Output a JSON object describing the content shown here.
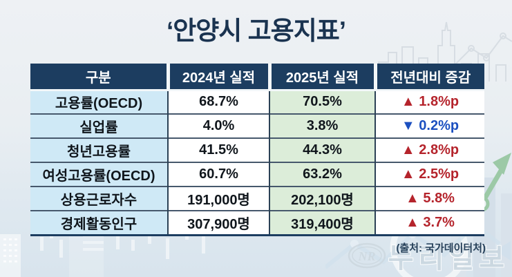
{
  "title": "‘안양시 고용지표’",
  "source_note": "(출처: 국가데이터처)",
  "watermark": {
    "logo_text": "NR",
    "name": "누리일보"
  },
  "colors": {
    "title_navy": "#1a3350",
    "header_bg": "#1c3d60",
    "category_bg": "#cfe9f6",
    "value_2025_bg": "#dcedd9",
    "up_red": "#b5242c",
    "down_blue": "#1c50c0",
    "trend_green": "#9cc9a6"
  },
  "chart_data": {
    "type": "table",
    "title": "‘안양시 고용지표’",
    "source": "(출처: 국가데이터처)",
    "columns": [
      "구분",
      "2024년 실적",
      "2025년 실적",
      "전년대비 증감"
    ],
    "rows": [
      {
        "category": "고용률(OECD)",
        "y2024": "68.7%",
        "y2025": "70.5%",
        "arrow": "▲",
        "value": "1.8%p",
        "direction": "up"
      },
      {
        "category": "실업률",
        "y2024": "4.0%",
        "y2025": "3.8%",
        "arrow": "▼",
        "value": "0.2%p",
        "direction": "down"
      },
      {
        "category": "청년고용률",
        "y2024": "41.5%",
        "y2025": "44.3%",
        "arrow": "▲",
        "value": "2.8%p",
        "direction": "up"
      },
      {
        "category": "여성고용률(OECD)",
        "y2024": "60.7%",
        "y2025": "63.2%",
        "arrow": "▲",
        "value": "2.5%p",
        "direction": "up"
      },
      {
        "category": "상용근로자수",
        "y2024": "191,000명",
        "y2025": "202,100명",
        "arrow": "▲",
        "value": "5.8%",
        "direction": "up"
      },
      {
        "category": "경제활동인구",
        "y2024": "307,900명",
        "y2025": "319,400명",
        "arrow": "▲",
        "value": "3.7%",
        "direction": "up"
      }
    ]
  }
}
